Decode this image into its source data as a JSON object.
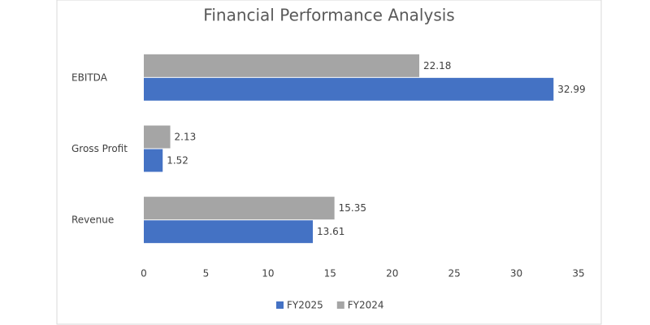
{
  "chart_data": {
    "type": "hbar",
    "title": "Financial Performance Analysis",
    "categories": [
      "Revenue",
      "Gross Profit",
      "EBITDA"
    ],
    "series": [
      {
        "name": "FY2025",
        "color": "#4472c4",
        "values": [
          13.61,
          1.52,
          32.99
        ]
      },
      {
        "name": "FY2024",
        "color": "#a5a5a5",
        "values": [
          15.35,
          2.13,
          22.18
        ]
      }
    ],
    "xlim": [
      0,
      35
    ],
    "xticks": [
      0,
      5,
      10,
      15,
      20,
      25,
      30,
      35
    ],
    "grid": false,
    "legend": "bottom"
  }
}
